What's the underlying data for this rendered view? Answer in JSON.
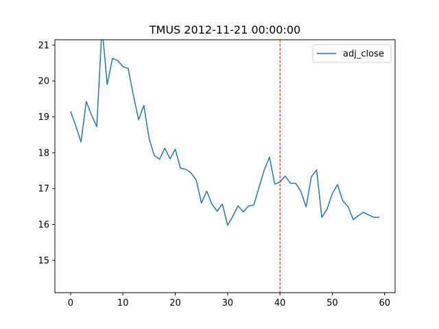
{
  "chart_data": {
    "type": "line",
    "title": "TMUS 2012-11-21 00:00:00",
    "xlabel": "",
    "ylabel": "",
    "xlim": [
      -3,
      62
    ],
    "ylim": [
      14.1,
      21.15
    ],
    "x_ticks": [
      0,
      10,
      20,
      30,
      40,
      50,
      60
    ],
    "y_ticks": [
      15,
      16,
      17,
      18,
      19,
      20,
      21
    ],
    "grid": false,
    "legend_position": "top-right",
    "series": [
      {
        "name": "adj_close",
        "color": "#1f77b4",
        "x": [
          0,
          1,
          2,
          3,
          4,
          5,
          6,
          7,
          8,
          9,
          10,
          11,
          12,
          13,
          14,
          15,
          16,
          17,
          18,
          19,
          20,
          21,
          22,
          23,
          24,
          25,
          26,
          27,
          28,
          29,
          30,
          31,
          32,
          33,
          34,
          35,
          36,
          37,
          38,
          39,
          40,
          41,
          42,
          43,
          44,
          45,
          46,
          47,
          48,
          49,
          50,
          51,
          52,
          53,
          54,
          55,
          56,
          57,
          58,
          59
        ],
        "values": [
          19.15,
          18.75,
          18.3,
          19.43,
          19.05,
          18.73,
          21.5,
          19.9,
          20.63,
          20.57,
          20.4,
          20.35,
          19.6,
          18.92,
          19.32,
          18.4,
          17.92,
          17.82,
          18.13,
          17.83,
          18.1,
          17.57,
          17.54,
          17.44,
          17.24,
          16.6,
          16.93,
          16.57,
          16.37,
          16.57,
          15.98,
          16.23,
          16.52,
          16.35,
          16.52,
          16.54,
          17.03,
          17.52,
          17.88,
          17.13,
          17.18,
          17.35,
          17.15,
          17.15,
          16.92,
          16.49,
          17.33,
          17.52,
          16.2,
          16.43,
          16.86,
          17.11,
          16.66,
          16.5,
          16.14,
          16.25,
          16.34,
          16.26,
          16.2,
          16.2
        ]
      }
    ],
    "vline": {
      "x": 40,
      "color": "#ff0000",
      "style": "dashed"
    }
  }
}
